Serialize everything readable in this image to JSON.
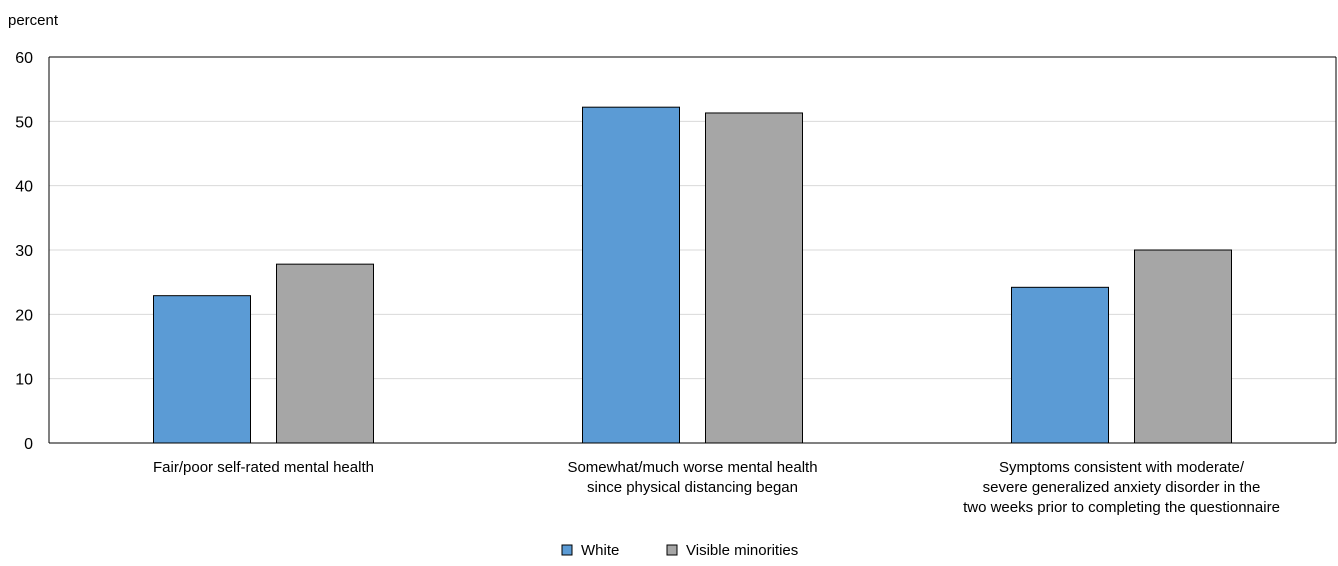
{
  "chart_data": {
    "type": "bar",
    "ylabel": "percent",
    "ylim": [
      0,
      60
    ],
    "yticks": [
      0,
      10,
      20,
      30,
      40,
      50,
      60
    ],
    "grid": true,
    "legend_position": "bottom-center",
    "categories": [
      [
        "Fair/poor self-rated mental health"
      ],
      [
        "Somewhat/much worse mental health",
        "since physical distancing began"
      ],
      [
        "Symptoms consistent with moderate/",
        "severe generalized anxiety disorder in the",
        "two weeks prior to completing the questionnaire"
      ]
    ],
    "series": [
      {
        "name": "White",
        "color": "#5B9BD5",
        "values": [
          22.9,
          52.2,
          24.2
        ]
      },
      {
        "name": "Visible minorities",
        "color": "#A6A6A6",
        "values": [
          27.8,
          51.3,
          30.0
        ]
      }
    ]
  }
}
